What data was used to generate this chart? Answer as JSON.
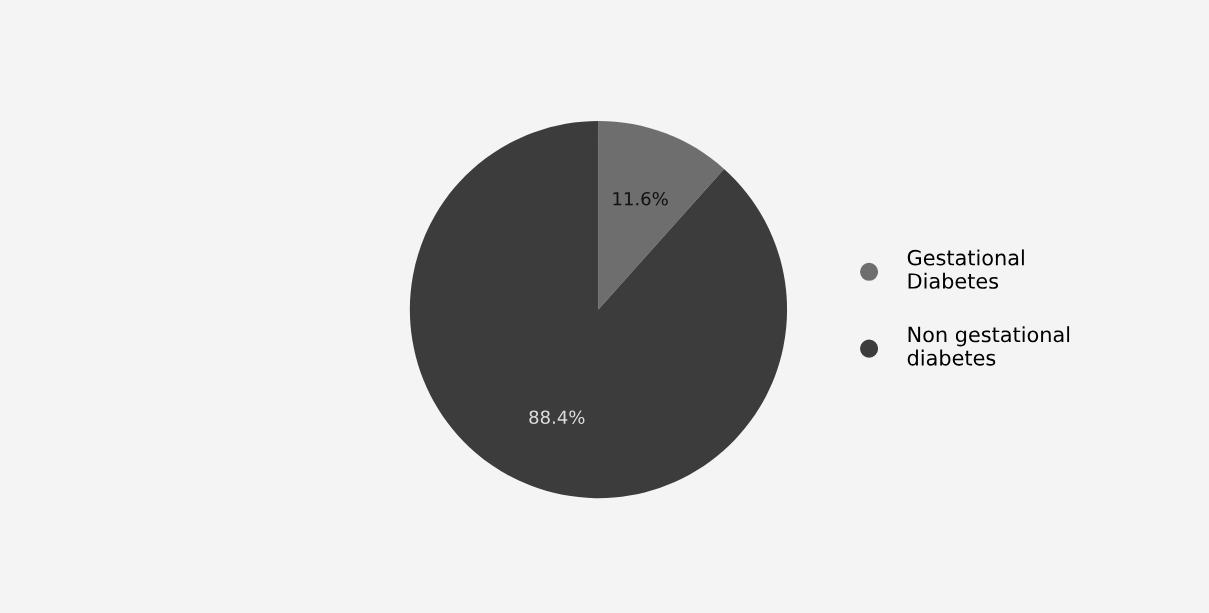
{
  "chart_data": {
    "type": "pie",
    "categories": [
      "Gestational\nDiabetes",
      "Non gestational\ndiabetes"
    ],
    "values": [
      11.6,
      88.4
    ],
    "colors": [
      "#6e6e6e",
      "#3c3c3c"
    ],
    "value_labels": [
      "11.6%",
      "88.4%"
    ],
    "legend": "right"
  }
}
